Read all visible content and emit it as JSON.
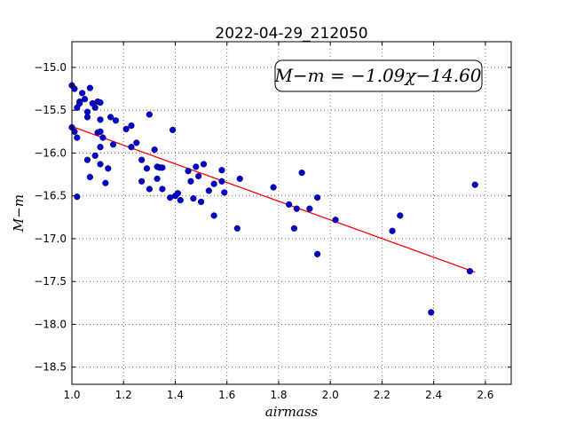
{
  "chart_data": {
    "type": "scatter",
    "title": "2022-04-29_212050",
    "xlabel": "airmass",
    "ylabel": "M−m",
    "xlim": [
      1.0,
      2.7
    ],
    "ylim": [
      -18.7,
      -14.7
    ],
    "y_inverted": true,
    "xticks": [
      1.0,
      1.2,
      1.4,
      1.6,
      1.8,
      2.0,
      2.2,
      2.4,
      2.6
    ],
    "yticks": [
      -15.0,
      -15.5,
      -16.0,
      -16.5,
      -17.0,
      -17.5,
      -18.0,
      -18.5
    ],
    "xtick_labels": [
      "1.0",
      "1.2",
      "1.4",
      "1.6",
      "1.8",
      "2.0",
      "2.2",
      "2.4",
      "2.6"
    ],
    "ytick_labels": [
      "−15.0",
      "−15.5",
      "−16.0",
      "−16.5",
      "−17.0",
      "−17.5",
      "−18.0",
      "−18.5"
    ],
    "grid": true,
    "annotation": "M−m = −1.09χ−14.60",
    "fit": {
      "slope": -1.09,
      "intercept": -14.6,
      "x_range": [
        1.0,
        2.56
      ],
      "color": "#ff0000"
    },
    "point_color": "#0000cc",
    "points": [
      [
        1.0,
        -15.21
      ],
      [
        1.01,
        -15.25
      ],
      [
        1.03,
        -15.4
      ],
      [
        1.04,
        -15.3
      ],
      [
        1.02,
        -15.47
      ],
      [
        1.03,
        -15.42
      ],
      [
        1.05,
        -15.37
      ],
      [
        1.06,
        -15.52
      ],
      [
        1.06,
        -15.58
      ],
      [
        1.07,
        -15.24
      ],
      [
        1.08,
        -15.42
      ],
      [
        1.09,
        -15.47
      ],
      [
        1.1,
        -15.4
      ],
      [
        1.11,
        -15.41
      ],
      [
        1.11,
        -15.61
      ],
      [
        1.15,
        -15.58
      ],
      [
        1.17,
        -15.62
      ],
      [
        1.3,
        -15.55
      ],
      [
        1.0,
        -15.7
      ],
      [
        1.01,
        -15.75
      ],
      [
        1.02,
        -15.82
      ],
      [
        1.1,
        -15.76
      ],
      [
        1.11,
        -15.75
      ],
      [
        1.12,
        -15.82
      ],
      [
        1.16,
        -15.9
      ],
      [
        1.21,
        -15.72
      ],
      [
        1.23,
        -15.68
      ],
      [
        1.25,
        -15.88
      ],
      [
        1.23,
        -15.93
      ],
      [
        1.39,
        -15.73
      ],
      [
        1.06,
        -16.08
      ],
      [
        1.09,
        -16.03
      ],
      [
        1.11,
        -15.93
      ],
      [
        1.11,
        -16.13
      ],
      [
        1.14,
        -16.18
      ],
      [
        1.07,
        -16.28
      ],
      [
        1.13,
        -16.35
      ],
      [
        1.27,
        -16.08
      ],
      [
        1.29,
        -16.18
      ],
      [
        1.27,
        -16.33
      ],
      [
        1.3,
        -16.42
      ],
      [
        1.32,
        -15.96
      ],
      [
        1.33,
        -16.16
      ],
      [
        1.34,
        -16.17
      ],
      [
        1.35,
        -16.17
      ],
      [
        1.33,
        -16.3
      ],
      [
        1.35,
        -16.42
      ],
      [
        1.38,
        -16.52
      ],
      [
        1.4,
        -16.5
      ],
      [
        1.41,
        -16.47
      ],
      [
        1.42,
        -16.55
      ],
      [
        1.45,
        -16.21
      ],
      [
        1.46,
        -16.33
      ],
      [
        1.48,
        -16.16
      ],
      [
        1.49,
        -16.27
      ],
      [
        1.51,
        -16.13
      ],
      [
        1.47,
        -16.53
      ],
      [
        1.5,
        -16.57
      ],
      [
        1.53,
        -16.44
      ],
      [
        1.55,
        -16.36
      ],
      [
        1.55,
        -16.73
      ],
      [
        1.58,
        -16.2
      ],
      [
        1.58,
        -16.33
      ],
      [
        1.59,
        -16.46
      ],
      [
        1.65,
        -16.3
      ],
      [
        1.64,
        -16.88
      ],
      [
        1.78,
        -16.4
      ],
      [
        1.84,
        -16.6
      ],
      [
        1.87,
        -16.65
      ],
      [
        1.89,
        -16.23
      ],
      [
        1.86,
        -16.88
      ],
      [
        1.92,
        -16.65
      ],
      [
        1.95,
        -16.52
      ],
      [
        2.02,
        -16.78
      ],
      [
        1.95,
        -17.18
      ],
      [
        1.02,
        -16.51
      ],
      [
        2.24,
        -16.91
      ],
      [
        2.27,
        -16.73
      ],
      [
        2.39,
        -17.86
      ],
      [
        2.54,
        -17.38
      ],
      [
        2.56,
        -16.37
      ]
    ]
  }
}
